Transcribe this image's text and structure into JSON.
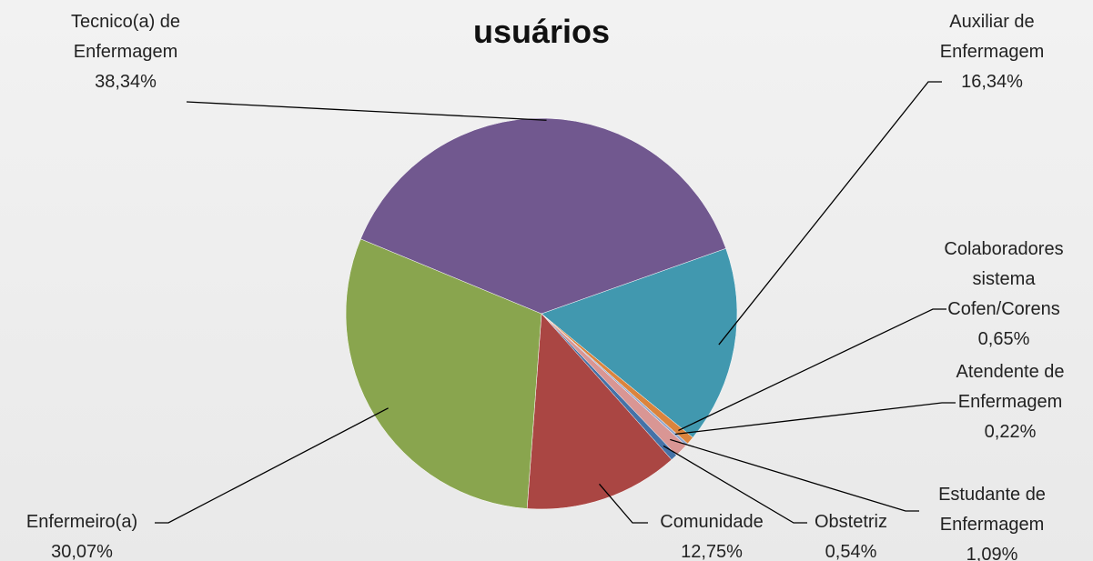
{
  "chart_data": {
    "type": "pie",
    "title": "usuários",
    "categories": [
      "Auxiliar de Enfermagem",
      "Colaboradores sistema Cofen/Corens",
      "Atendente de Enfermagem",
      "Estudante de Enfermagem",
      "Obstetriz",
      "Comunidade",
      "Enfermeiro(a)",
      "Tecnico(a) de Enfermagem"
    ],
    "values": [
      16.34,
      0.65,
      0.22,
      1.09,
      0.54,
      12.75,
      30.07,
      38.34
    ],
    "value_labels": [
      "16,34%",
      "0,65%",
      "0,22%",
      "1,09%",
      "0,54%",
      "12,75%",
      "30,07%",
      "38,34%"
    ],
    "colors": [
      "#4198af",
      "#db843d",
      "#93a9cf",
      "#d99694",
      "#4572a7",
      "#aa4643",
      "#89a54e",
      "#71588f"
    ]
  }
}
